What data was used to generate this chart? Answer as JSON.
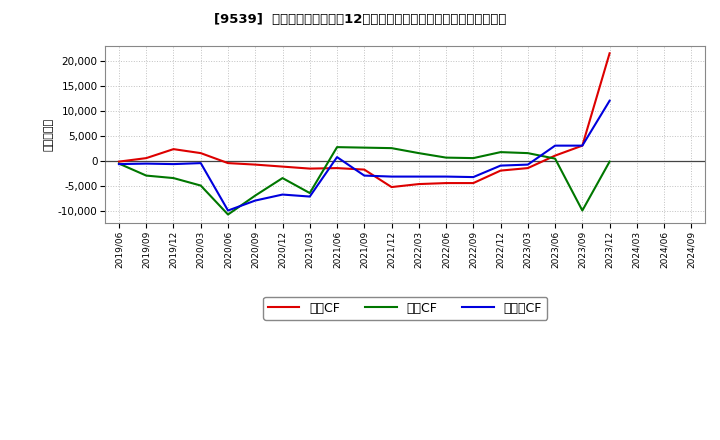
{
  "title": "[9539]  キャッシュフローの12か月移動合計の対前年同期増減額の推移",
  "ylabel": "（百万円）",
  "background_color": "#ffffff",
  "plot_bg_color": "#ffffff",
  "grid_color": "#bbbbbb",
  "x_labels": [
    "2019/06",
    "2019/09",
    "2019/12",
    "2020/03",
    "2020/06",
    "2020/09",
    "2020/12",
    "2021/03",
    "2021/06",
    "2021/09",
    "2021/12",
    "2022/03",
    "2022/06",
    "2022/09",
    "2022/12",
    "2023/03",
    "2023/06",
    "2023/09",
    "2023/12",
    "2024/03",
    "2024/06",
    "2024/09"
  ],
  "eigyo_cf": [
    -200,
    500,
    2300,
    1500,
    -500,
    -800,
    -1200,
    -1600,
    -1500,
    -1800,
    -5300,
    -4700,
    -4500,
    -4500,
    -2000,
    -1500,
    1000,
    3000,
    21500,
    null,
    null,
    null
  ],
  "toshi_cf": [
    -600,
    -3000,
    -3500,
    -5000,
    -10800,
    -7000,
    -3500,
    -6500,
    2700,
    2600,
    2500,
    1500,
    600,
    500,
    1700,
    1500,
    400,
    -10000,
    -200,
    null,
    null,
    null
  ],
  "free_cf": [
    -700,
    -600,
    -700,
    -500,
    -10000,
    -8000,
    -6800,
    -7200,
    700,
    -3000,
    -3200,
    -3200,
    -3200,
    -3300,
    -1000,
    -800,
    3000,
    3000,
    12000,
    null,
    null,
    null
  ],
  "eigyo_color": "#dd0000",
  "toshi_color": "#007700",
  "free_color": "#0000dd",
  "eigyo_label": "営業CF",
  "toshi_label": "投資CF",
  "free_label": "フリーCF",
  "ylim": [
    -12500,
    23000
  ],
  "yticks": [
    -10000,
    -5000,
    0,
    5000,
    10000,
    15000,
    20000
  ]
}
